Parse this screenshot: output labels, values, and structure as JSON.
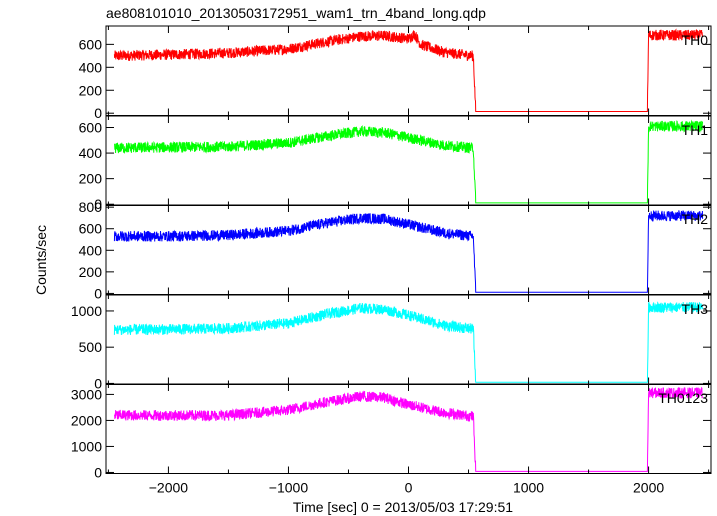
{
  "chart_data": {
    "type": "line",
    "title": "ae808101010_20130503172951_wam1_trn_4band_long.qdp",
    "xlabel": "Time [sec] 0 = 2013/05/03 17:29:51",
    "ylabel": "Counts/sec",
    "xlim": [
      -2520,
      2520
    ],
    "x_ticks": [
      -2000,
      -1000,
      0,
      1000,
      2000
    ],
    "x_tick_labels": [
      "−2000",
      "−1000",
      "0",
      "1000",
      "2000"
    ],
    "grid": false,
    "series": [
      {
        "name": "TH0",
        "color": "#ff0000",
        "ylim": [
          -20,
          760
        ],
        "y_ticks": [
          0,
          200,
          400,
          600
        ],
        "x": [
          -2450,
          -2000,
          -1500,
          -1000,
          -700,
          -400,
          -200,
          0,
          50,
          100,
          300,
          540,
          560,
          1990,
          2000,
          2450
        ],
        "values": [
          500,
          510,
          525,
          560,
          620,
          670,
          675,
          650,
          690,
          600,
          530,
          500,
          15,
          15,
          680,
          680
        ]
      },
      {
        "name": "TH1",
        "color": "#00ff00",
        "ylim": [
          -10,
          690
        ],
        "y_ticks": [
          0,
          200,
          400,
          600
        ],
        "x": [
          -2450,
          -2000,
          -1500,
          -1000,
          -700,
          -400,
          -200,
          0,
          300,
          540,
          560,
          1990,
          2000,
          2450
        ],
        "values": [
          440,
          445,
          450,
          480,
          530,
          570,
          560,
          520,
          460,
          440,
          10,
          10,
          610,
          610
        ]
      },
      {
        "name": "TH2",
        "color": "#0000ff",
        "ylim": [
          -10,
          820
        ],
        "y_ticks": [
          0,
          200,
          400,
          600,
          800
        ],
        "x": [
          -2450,
          -2000,
          -1500,
          -1000,
          -700,
          -400,
          -200,
          0,
          300,
          540,
          560,
          1990,
          2000,
          2450
        ],
        "values": [
          530,
          530,
          540,
          580,
          650,
          700,
          690,
          640,
          560,
          530,
          10,
          10,
          720,
          720
        ]
      },
      {
        "name": "TH3",
        "color": "#00ffff",
        "ylim": [
          -15,
          1220
        ],
        "y_ticks": [
          0,
          500,
          1000
        ],
        "x": [
          -2450,
          -2000,
          -1500,
          -1000,
          -700,
          -400,
          -200,
          0,
          300,
          540,
          560,
          1990,
          2000,
          2450
        ],
        "values": [
          740,
          745,
          760,
          830,
          950,
          1040,
          1020,
          940,
          800,
          750,
          15,
          15,
          1050,
          1050
        ]
      },
      {
        "name": "TH0123",
        "color": "#ff00ff",
        "ylim": [
          -40,
          3400
        ],
        "y_ticks": [
          0,
          1000,
          2000,
          3000
        ],
        "x": [
          -2450,
          -2000,
          -1500,
          -1000,
          -700,
          -400,
          -200,
          0,
          300,
          540,
          560,
          1990,
          2000,
          2450
        ],
        "values": [
          2200,
          2190,
          2200,
          2400,
          2700,
          2920,
          2880,
          2600,
          2300,
          2150,
          40,
          40,
          3060,
          3060
        ]
      }
    ]
  }
}
